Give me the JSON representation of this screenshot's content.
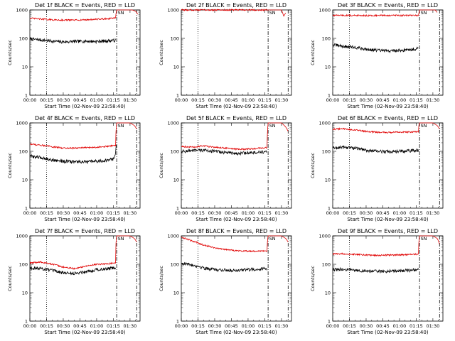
{
  "panels": [
    {
      "title": "Det 1f BLACK = Events, RED = LLD",
      "ylabel": "Counts/sec",
      "xlabel": "Start Time (02-Nov-09 23:58:40)",
      "xtick_labels": [
        "00:00",
        "00:15",
        "00:30",
        "00:45",
        "01:00",
        "01:15",
        "01:30"
      ],
      "ytick_labels": [
        "1",
        "10",
        "100",
        "1000"
      ],
      "marker_labels": [
        "S",
        "N"
      ]
    },
    {
      "title": "Det 2f BLACK = Events, RED = LLD",
      "ylabel": "Counts/sec",
      "xlabel": "Start Time (02-Nov-09 23:58:40)",
      "xtick_labels": [
        "00:00",
        "00:15",
        "00:30",
        "00:45",
        "01:00",
        "01:15",
        "01:30"
      ],
      "ytick_labels": [
        "1",
        "10",
        "100",
        "1000"
      ],
      "marker_labels": [
        "S",
        "N"
      ]
    },
    {
      "title": "Det 3f BLACK = Events, RED = LLD",
      "ylabel": "Counts/sec",
      "xlabel": "Start Time (02-Nov-09 23:58:40)",
      "xtick_labels": [
        "00:00",
        "00:15",
        "00:30",
        "00:45",
        "01:00",
        "01:15",
        "01:30"
      ],
      "ytick_labels": [
        "1",
        "10",
        "100",
        "1000"
      ],
      "marker_labels": [
        "S",
        "N"
      ]
    },
    {
      "title": "Det 4f BLACK = Events, RED = LLD",
      "ylabel": "Counts/sec",
      "xlabel": "Start Time (02-Nov-09 23:58:40)",
      "xtick_labels": [
        "00:00",
        "00:15",
        "00:30",
        "00:45",
        "01:00",
        "01:15",
        "01:30"
      ],
      "ytick_labels": [
        "1",
        "10",
        "100",
        "1000"
      ],
      "marker_labels": [
        "S",
        "N"
      ]
    },
    {
      "title": "Det 5f BLACK = Events, RED = LLD",
      "ylabel": "Counts/sec",
      "xlabel": "Start Time (02-Nov-09 23:58:40)",
      "xtick_labels": [
        "00:00",
        "00:15",
        "00:30",
        "00:45",
        "01:00",
        "01:15",
        "01:30"
      ],
      "ytick_labels": [
        "1",
        "10",
        "100",
        "1000"
      ],
      "marker_labels": [
        "S",
        "N"
      ]
    },
    {
      "title": "Det 6f BLACK = Events, RED = LLD",
      "ylabel": "Counts/sec",
      "xlabel": "Start Time (02-Nov-09 23:58:40)",
      "xtick_labels": [
        "00:00",
        "00:15",
        "00:30",
        "00:45",
        "01:00",
        "01:15",
        "01:30"
      ],
      "ytick_labels": [
        "1",
        "10",
        "100",
        "1000"
      ],
      "marker_labels": [
        "S",
        "N"
      ]
    },
    {
      "title": "Det 7f BLACK = Events, RED = LLD",
      "ylabel": "Counts/sec",
      "xlabel": "Start Time (02-Nov-09 23:58:40)",
      "xtick_labels": [
        "00:00",
        "00:15",
        "00:30",
        "00:45",
        "01:00",
        "01:15",
        "01:30"
      ],
      "ytick_labels": [
        "1",
        "10",
        "100",
        "1000"
      ],
      "marker_labels": [
        "S",
        "N"
      ]
    },
    {
      "title": "Det 8f BLACK = Events, RED = LLD",
      "ylabel": "Counts/sec",
      "xlabel": "Start Time (02-Nov-09 23:58:40)",
      "xtick_labels": [
        "00:00",
        "00:15",
        "00:30",
        "00:45",
        "01:00",
        "01:15",
        "01:30"
      ],
      "ytick_labels": [
        "1",
        "10",
        "100",
        "1000"
      ],
      "marker_labels": [
        "S",
        "N"
      ]
    },
    {
      "title": "Det 9f BLACK = Events, RED = LLD",
      "ylabel": "Counts/sec",
      "xlabel": "Start Time (02-Nov-09 23:58:40)",
      "xtick_labels": [
        "00:00",
        "00:15",
        "00:30",
        "00:45",
        "01:00",
        "01:15",
        "01:30"
      ],
      "ytick_labels": [
        "1",
        "10",
        "100",
        "1000"
      ],
      "marker_labels": [
        "S",
        "N"
      ]
    }
  ],
  "colors": {
    "events": "#000000",
    "lld": "#e00000",
    "axes": "#000000"
  },
  "chart_data": [
    {
      "type": "line",
      "title": "Det 1f BLACK = Events, RED = LLD",
      "xlabel": "Start Time (02-Nov-09 23:58:40)",
      "ylabel": "Counts/sec",
      "x_unit": "minutes after 00:00",
      "xlim": [
        0,
        99
      ],
      "ylim": [
        1,
        1000
      ],
      "yscale": "log",
      "vlines": [
        {
          "x": 15,
          "style": "dotted"
        },
        {
          "x": 78,
          "style": "dash-dot"
        },
        {
          "x": 96,
          "style": "dash-dot"
        }
      ],
      "series": [
        {
          "name": "BLACK = Events",
          "color": "#000000",
          "x": [
            0,
            10,
            20,
            30,
            40,
            50,
            60,
            70,
            77
          ],
          "y": [
            95,
            88,
            80,
            75,
            78,
            80,
            78,
            82,
            85
          ]
        },
        {
          "name": "RED = LLD",
          "color": "#e00000",
          "x": [
            0,
            10,
            20,
            30,
            40,
            50,
            60,
            70,
            77,
            77.5,
            78,
            92,
            95,
            97
          ],
          "y": [
            510,
            480,
            450,
            440,
            440,
            450,
            470,
            490,
            520,
            800,
            1000,
            1000,
            900,
            700
          ]
        }
      ]
    },
    {
      "type": "line",
      "title": "Det 2f BLACK = Events, RED = LLD",
      "xlabel": "Start Time (02-Nov-09 23:58:40)",
      "ylabel": "Counts/sec",
      "x_unit": "minutes after 00:00",
      "xlim": [
        0,
        99
      ],
      "ylim": [
        1,
        1000
      ],
      "yscale": "log",
      "vlines": [
        {
          "x": 15,
          "style": "dotted"
        },
        {
          "x": 78,
          "style": "dash-dot"
        },
        {
          "x": 96,
          "style": "dash-dot"
        }
      ],
      "series": [
        {
          "name": "BLACK = Events",
          "color": "#000000",
          "x": [
            0,
            20,
            40,
            60,
            77
          ],
          "y": [
            1000,
            1000,
            1000,
            1000,
            1000
          ]
        },
        {
          "name": "RED = LLD",
          "color": "#e00000",
          "x": [
            0,
            20,
            40,
            60,
            77,
            77.5,
            78,
            90,
            92,
            94
          ],
          "y": [
            1000,
            1000,
            1000,
            1000,
            1000,
            1000,
            1000,
            1000,
            600,
            800
          ]
        }
      ]
    },
    {
      "type": "line",
      "title": "Det 3f BLACK = Events, RED = LLD",
      "xlabel": "Start Time (02-Nov-09 23:58:40)",
      "ylabel": "Counts/sec",
      "x_unit": "minutes after 00:00",
      "xlim": [
        0,
        99
      ],
      "ylim": [
        1,
        1000
      ],
      "yscale": "log",
      "vlines": [
        {
          "x": 15,
          "style": "dotted"
        },
        {
          "x": 78,
          "style": "dash-dot"
        },
        {
          "x": 96,
          "style": "dash-dot"
        }
      ],
      "series": [
        {
          "name": "BLACK = Events",
          "color": "#000000",
          "x": [
            0,
            10,
            20,
            30,
            40,
            50,
            60,
            70,
            77
          ],
          "y": [
            60,
            52,
            48,
            42,
            38,
            36,
            38,
            40,
            45
          ]
        },
        {
          "name": "RED = LLD",
          "color": "#e00000",
          "x": [
            0,
            20,
            40,
            60,
            77,
            77.5,
            78,
            92,
            94
          ],
          "y": [
            650,
            640,
            640,
            640,
            640,
            800,
            1000,
            1000,
            800
          ]
        }
      ]
    },
    {
      "type": "line",
      "title": "Det 4f BLACK = Events, RED = LLD",
      "xlabel": "Start Time (02-Nov-09 23:58:40)",
      "ylabel": "Counts/sec",
      "x_unit": "minutes after 00:00",
      "xlim": [
        0,
        99
      ],
      "ylim": [
        1,
        1000
      ],
      "yscale": "log",
      "vlines": [
        {
          "x": 15,
          "style": "dotted"
        },
        {
          "x": 78,
          "style": "dash-dot"
        },
        {
          "x": 96,
          "style": "dash-dot"
        }
      ],
      "series": [
        {
          "name": "BLACK = Events",
          "color": "#000000",
          "x": [
            0,
            10,
            20,
            30,
            40,
            50,
            60,
            70,
            76,
            77,
            78
          ],
          "y": [
            68,
            60,
            50,
            45,
            43,
            42,
            45,
            48,
            55,
            100,
            200
          ]
        },
        {
          "name": "RED = LLD",
          "color": "#e00000",
          "x": [
            0,
            10,
            20,
            30,
            40,
            50,
            60,
            70,
            77,
            77.5,
            78,
            90,
            94,
            96
          ],
          "y": [
            180,
            165,
            145,
            130,
            130,
            135,
            140,
            150,
            160,
            600,
            1000,
            1000,
            800,
            600
          ]
        }
      ]
    },
    {
      "type": "line",
      "title": "Det 5f BLACK = Events, RED = LLD",
      "xlabel": "Start Time (02-Nov-09 23:58:40)",
      "ylabel": "Counts/sec",
      "x_unit": "minutes after 00:00",
      "xlim": [
        0,
        99
      ],
      "ylim": [
        1,
        1000
      ],
      "yscale": "log",
      "vlines": [
        {
          "x": 15,
          "style": "dotted"
        },
        {
          "x": 78,
          "style": "dash-dot"
        },
        {
          "x": 96,
          "style": "dash-dot"
        }
      ],
      "series": [
        {
          "name": "BLACK = Events",
          "color": "#000000",
          "x": [
            0,
            10,
            20,
            30,
            40,
            50,
            60,
            70,
            77
          ],
          "y": [
            100,
            105,
            110,
            100,
            90,
            85,
            88,
            92,
            95
          ]
        },
        {
          "name": "RED = LLD",
          "color": "#e00000",
          "x": [
            0,
            10,
            20,
            30,
            40,
            50,
            60,
            70,
            77,
            77.5,
            78,
            90,
            94,
            96
          ],
          "y": [
            150,
            140,
            155,
            140,
            130,
            118,
            120,
            128,
            135,
            500,
            1000,
            1000,
            700,
            500
          ]
        }
      ]
    },
    {
      "type": "line",
      "title": "Det 6f BLACK = Events, RED = LLD",
      "xlabel": "Start Time (02-Nov-09 23:58:40)",
      "ylabel": "Counts/sec",
      "x_unit": "minutes after 00:00",
      "xlim": [
        0,
        99
      ],
      "ylim": [
        1,
        1000
      ],
      "yscale": "log",
      "vlines": [
        {
          "x": 15,
          "style": "dotted"
        },
        {
          "x": 78,
          "style": "dash-dot"
        },
        {
          "x": 96,
          "style": "dash-dot"
        }
      ],
      "series": [
        {
          "name": "BLACK = Events",
          "color": "#000000",
          "x": [
            0,
            10,
            20,
            30,
            40,
            50,
            60,
            70,
            77
          ],
          "y": [
            130,
            140,
            130,
            110,
            100,
            98,
            100,
            105,
            110
          ]
        },
        {
          "name": "RED = LLD",
          "color": "#e00000",
          "x": [
            0,
            10,
            20,
            30,
            40,
            50,
            60,
            70,
            77,
            77.5,
            78,
            90,
            94,
            96
          ],
          "y": [
            600,
            620,
            560,
            500,
            470,
            460,
            470,
            480,
            500,
            900,
            1000,
            1000,
            800,
            600
          ]
        }
      ]
    },
    {
      "type": "line",
      "title": "Det 7f BLACK = Events, RED = LLD",
      "xlabel": "Start Time (02-Nov-09 23:58:40)",
      "ylabel": "Counts/sec",
      "x_unit": "minutes after 00:00",
      "xlim": [
        0,
        99
      ],
      "ylim": [
        1,
        1000
      ],
      "yscale": "log",
      "vlines": [
        {
          "x": 15,
          "style": "dotted"
        },
        {
          "x": 78,
          "style": "dash-dot"
        },
        {
          "x": 96,
          "style": "dash-dot"
        }
      ],
      "series": [
        {
          "name": "BLACK = Events",
          "color": "#000000",
          "x": [
            0,
            10,
            20,
            30,
            40,
            50,
            60,
            70,
            77
          ],
          "y": [
            75,
            72,
            60,
            50,
            48,
            55,
            65,
            70,
            75
          ]
        },
        {
          "name": "RED = LLD",
          "color": "#e00000",
          "x": [
            0,
            10,
            20,
            30,
            40,
            50,
            60,
            70,
            77,
            77.5,
            78,
            90,
            94,
            96
          ],
          "y": [
            110,
            120,
            100,
            80,
            70,
            85,
            100,
            105,
            110,
            700,
            1000,
            1000,
            800,
            600
          ]
        }
      ]
    },
    {
      "type": "line",
      "title": "Det 8f BLACK = Events, RED = LLD",
      "xlabel": "Start Time (02-Nov-09 23:58:40)",
      "ylabel": "Counts/sec",
      "x_unit": "minutes after 00:00",
      "xlim": [
        0,
        99
      ],
      "ylim": [
        1,
        1000
      ],
      "yscale": "log",
      "vlines": [
        {
          "x": 15,
          "style": "dotted"
        },
        {
          "x": 78,
          "style": "dash-dot"
        },
        {
          "x": 96,
          "style": "dash-dot"
        }
      ],
      "series": [
        {
          "name": "BLACK = Events",
          "color": "#000000",
          "x": [
            0,
            10,
            20,
            30,
            40,
            50,
            60,
            70,
            77
          ],
          "y": [
            110,
            95,
            75,
            65,
            62,
            62,
            65,
            68,
            70
          ]
        },
        {
          "name": "RED = LLD",
          "color": "#e00000",
          "x": [
            0,
            10,
            20,
            30,
            40,
            50,
            60,
            70,
            77,
            77.5,
            78,
            90,
            94,
            96
          ],
          "y": [
            900,
            650,
            480,
            380,
            330,
            300,
            290,
            290,
            300,
            700,
            1000,
            1000,
            800,
            600
          ]
        }
      ]
    },
    {
      "type": "line",
      "title": "Det 9f BLACK = Events, RED = LLD",
      "xlabel": "Start Time (02-Nov-09 23:58:40)",
      "ylabel": "Counts/sec",
      "x_unit": "minutes after 00:00",
      "xlim": [
        0,
        99
      ],
      "ylim": [
        1,
        1000
      ],
      "yscale": "log",
      "vlines": [
        {
          "x": 15,
          "style": "dotted"
        },
        {
          "x": 78,
          "style": "dash-dot"
        },
        {
          "x": 96,
          "style": "dash-dot"
        }
      ],
      "series": [
        {
          "name": "BLACK = Events",
          "color": "#000000",
          "x": [
            0,
            10,
            20,
            30,
            40,
            50,
            60,
            70,
            77
          ],
          "y": [
            65,
            66,
            62,
            58,
            56,
            57,
            60,
            62,
            65
          ]
        },
        {
          "name": "RED = LLD",
          "color": "#e00000",
          "x": [
            0,
            10,
            20,
            30,
            40,
            50,
            60,
            70,
            77,
            77.5,
            78,
            90,
            94,
            96
          ],
          "y": [
            230,
            235,
            225,
            210,
            205,
            210,
            215,
            220,
            230,
            700,
            1000,
            1000,
            800,
            500
          ]
        }
      ]
    }
  ]
}
